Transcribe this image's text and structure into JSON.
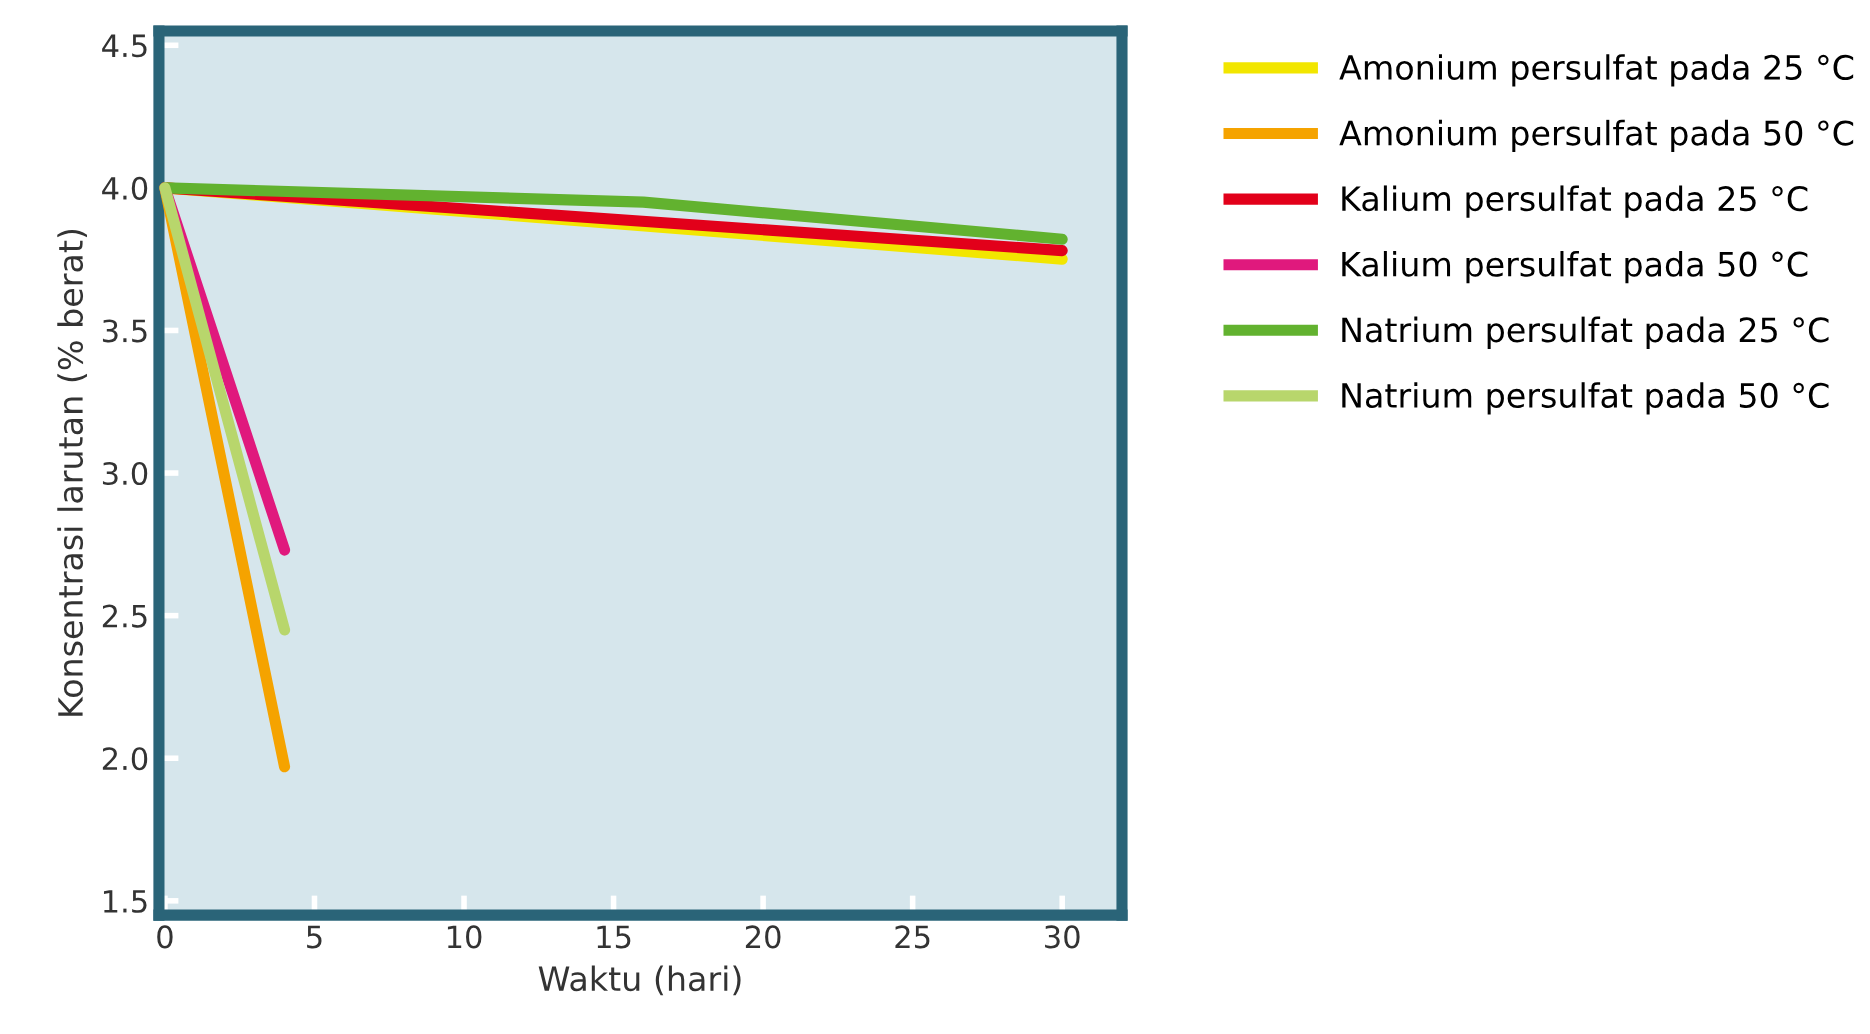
{
  "chart_data": {
    "type": "line",
    "xlabel": "Waktu (hari)",
    "ylabel": "Konsentrasi larutan (% berat)",
    "xlim": [
      -0.2,
      32
    ],
    "ylim": [
      1.45,
      4.55
    ],
    "xticks": [
      0,
      5,
      10,
      15,
      20,
      25,
      30
    ],
    "yticks": [
      {
        "value": 1.5,
        "label": "1.5"
      },
      {
        "value": 2.0,
        "label": "2.0"
      },
      {
        "value": 2.5,
        "label": "2.5"
      },
      {
        "value": 3.0,
        "label": "3.0"
      },
      {
        "value": 3.5,
        "label": "3.5"
      },
      {
        "value": 4.0,
        "label": "4.0"
      },
      {
        "value": 4.5,
        "label": "4.5"
      }
    ],
    "grid": false,
    "legend": "right",
    "marker": "none",
    "line_style": "solid",
    "series": [
      {
        "name": "Amonium persulfat pada 25 °C",
        "color": "#f2e600",
        "x": [
          0,
          30
        ],
        "values": [
          4.0,
          3.75
        ]
      },
      {
        "name": "Amonium persulfat pada 50 °C",
        "color": "#f5a300",
        "x": [
          0,
          4
        ],
        "values": [
          4.0,
          1.97
        ]
      },
      {
        "name": "Kalium persulfat pada 25 °C",
        "color": "#e2001a",
        "x": [
          0,
          30
        ],
        "values": [
          4.0,
          3.78
        ]
      },
      {
        "name": "Kalium persulfat pada 50 °C",
        "color": "#e0197d",
        "x": [
          0,
          4
        ],
        "values": [
          4.0,
          2.73
        ]
      },
      {
        "name": "Natrium persulfat pada 25 °C",
        "color": "#62b22f",
        "x": [
          0,
          16,
          30
        ],
        "values": [
          4.0,
          3.95,
          3.82
        ]
      },
      {
        "name": "Natrium persulfat pada 50 °C",
        "color": "#b8d66c",
        "x": [
          0,
          4
        ],
        "values": [
          4.0,
          2.45
        ]
      }
    ]
  }
}
